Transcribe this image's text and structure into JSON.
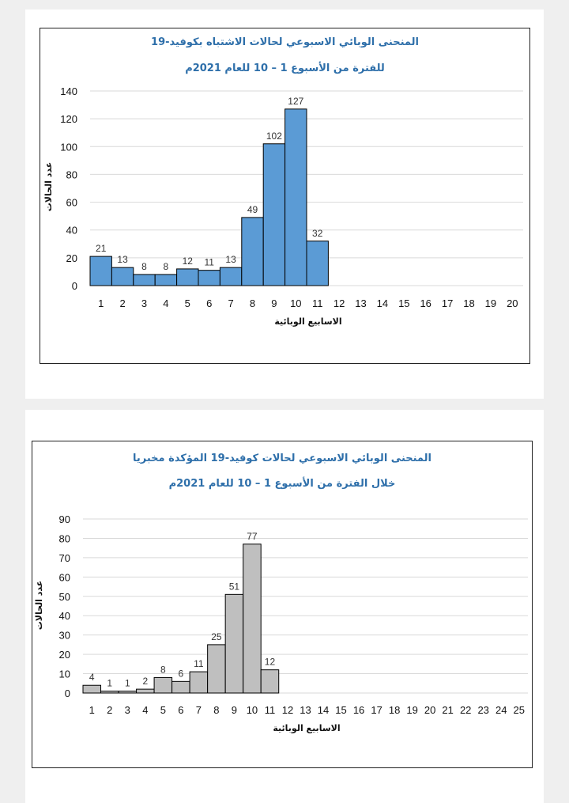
{
  "chart_data": [
    {
      "type": "bar",
      "title": "المنحنى الوبائي الاسبوعي لحالات الاشتباه بكوفيد-19",
      "subtitle": "للفترة من الأسبوع 1 – 10   للعام 2021م",
      "xlabel": "الاسابيع الوبائية",
      "ylabel": "عدد الحالات",
      "categories": [
        "1",
        "2",
        "3",
        "4",
        "5",
        "6",
        "7",
        "8",
        "9",
        "10",
        "11",
        "12",
        "13",
        "14",
        "15",
        "16",
        "17",
        "18",
        "19",
        "20"
      ],
      "values": [
        21,
        13,
        8,
        8,
        12,
        11,
        13,
        49,
        102,
        127,
        32,
        null,
        null,
        null,
        null,
        null,
        null,
        null,
        null,
        null
      ],
      "yticks": [
        0,
        20,
        40,
        60,
        80,
        100,
        120,
        140
      ],
      "ylim": [
        0,
        140
      ],
      "grid": true,
      "bar_color": "#5b9bd5"
    },
    {
      "type": "bar",
      "title": "المنحنى الوبائي الاسبوعي لحالات كوفيد-19 المؤكدة مخبريا",
      "subtitle": "خلال الفترة من الأسبوع 1 – 10 للعام 2021م",
      "xlabel": "الاسابيع الوبائية",
      "ylabel": "عدد الحالات",
      "categories": [
        "1",
        "2",
        "3",
        "4",
        "5",
        "6",
        "7",
        "8",
        "9",
        "10",
        "11",
        "12",
        "13",
        "14",
        "15",
        "16",
        "17",
        "18",
        "19",
        "20",
        "21",
        "22",
        "23",
        "24",
        "25"
      ],
      "values": [
        4,
        1,
        1,
        2,
        8,
        6,
        11,
        25,
        51,
        77,
        12,
        null,
        null,
        null,
        null,
        null,
        null,
        null,
        null,
        null,
        null,
        null,
        null,
        null,
        null
      ],
      "yticks": [
        0,
        10,
        20,
        30,
        40,
        50,
        60,
        70,
        80,
        90
      ],
      "ylim": [
        0,
        90
      ],
      "grid": true,
      "bar_color": "#bfbfbf"
    }
  ]
}
